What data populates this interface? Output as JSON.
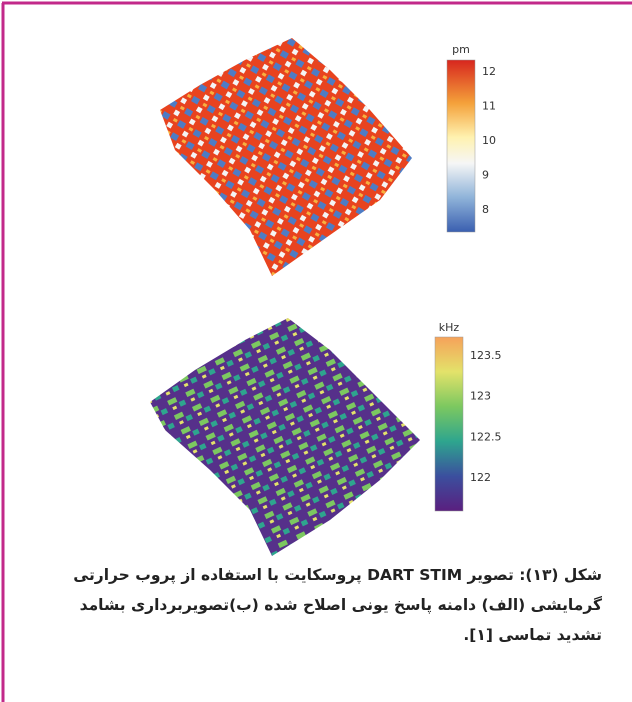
{
  "figures": [
    {
      "colorbar": {
        "unit": "pm",
        "ticks": [
          "12",
          "11",
          "10",
          "9",
          "8"
        ]
      }
    },
    {
      "colorbar": {
        "unit": "kHz",
        "ticks": [
          "123.5",
          "123",
          "122.5",
          "122"
        ]
      }
    }
  ],
  "caption": {
    "lines": [
      "شکل (۱۳): تصویر DART STIM پروسکایت با استفاده از پروب حرارتی",
      "گرمایشی (الف) دامنه پاسخ یونی اصلاح شده (ب)تصویربرداری بشامد",
      "تشدید تماسی [۱]."
    ]
  }
}
